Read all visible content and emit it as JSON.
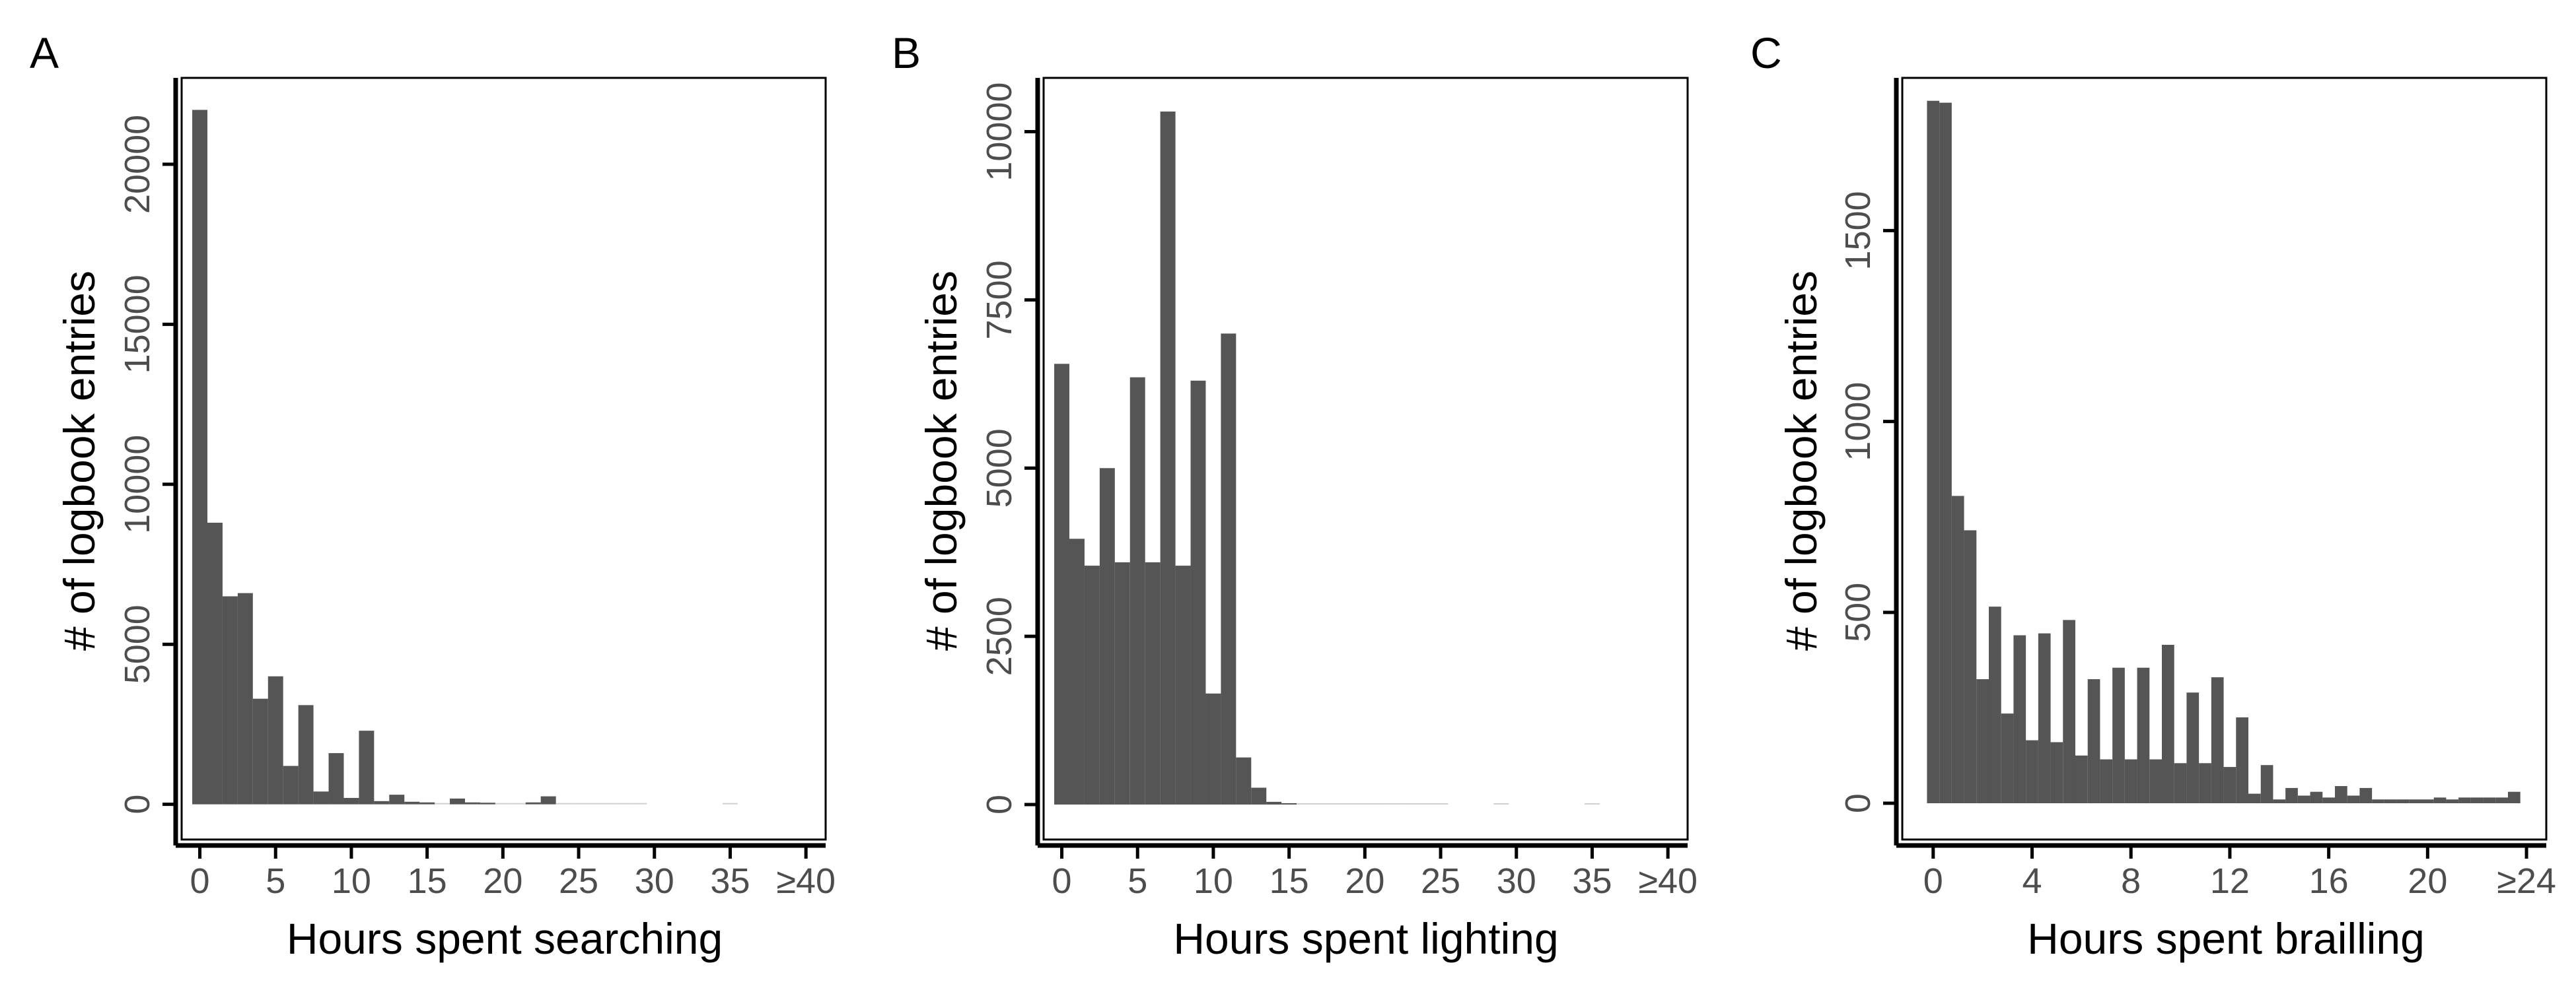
{
  "chart_data": [
    {
      "panel": "A",
      "type": "bar",
      "xlabel": "Hours spent searching",
      "ylabel": "# of logbook entries",
      "xlim": [
        -1.2,
        41.3
      ],
      "ylim": [
        -1100,
        22700
      ],
      "bin_width": 1,
      "x_ticks": [
        0,
        5,
        10,
        15,
        20,
        25,
        30,
        35,
        40
      ],
      "x_tick_labels": [
        "0",
        "5",
        "10",
        "15",
        "20",
        "25",
        "30",
        "35",
        "≥40"
      ],
      "y_ticks": [
        0,
        5000,
        10000,
        15000,
        20000
      ],
      "y_tick_labels": [
        "0",
        "5000",
        "10000",
        "15000",
        "20000"
      ],
      "x": [
        0,
        1,
        2,
        3,
        4,
        5,
        6,
        7,
        8,
        9,
        10,
        11,
        12,
        13,
        14,
        15,
        16,
        17,
        18,
        19,
        20,
        21,
        22,
        23,
        24,
        25,
        26,
        27,
        28,
        29,
        30,
        31,
        32,
        33,
        34,
        35,
        36,
        37,
        38,
        39,
        40
      ],
      "values": [
        21700,
        8800,
        6500,
        6600,
        3300,
        4000,
        1200,
        3100,
        400,
        1600,
        200,
        2300,
        100,
        300,
        80,
        60,
        20,
        180,
        60,
        50,
        20,
        10,
        60,
        250,
        10,
        5,
        10,
        10,
        5,
        10,
        0,
        0,
        0,
        0,
        0,
        5,
        0,
        0,
        0,
        0,
        0
      ]
    },
    {
      "panel": "B",
      "type": "bar",
      "xlabel": "Hours spent lighting",
      "ylabel": "# of logbook entries",
      "xlim": [
        -1.2,
        41.3
      ],
      "ylim": [
        -520,
        10800
      ],
      "bin_width": 1,
      "x_ticks": [
        0,
        5,
        10,
        15,
        20,
        25,
        30,
        35,
        40
      ],
      "x_tick_labels": [
        "0",
        "5",
        "10",
        "15",
        "20",
        "25",
        "30",
        "35",
        "≥40"
      ],
      "y_ticks": [
        0,
        2500,
        5000,
        7500,
        10000
      ],
      "y_tick_labels": [
        "0",
        "2500",
        "5000",
        "7500",
        "10000"
      ],
      "x": [
        0,
        1,
        2,
        3,
        4,
        5,
        6,
        7,
        8,
        9,
        10,
        11,
        12,
        13,
        14,
        15,
        16,
        17,
        18,
        19,
        20,
        21,
        22,
        23,
        24,
        25,
        26,
        27,
        28,
        29,
        30,
        31,
        32,
        33,
        34,
        35,
        36,
        37,
        38,
        39,
        40
      ],
      "values": [
        6550,
        3950,
        3550,
        5000,
        3600,
        6350,
        3600,
        10300,
        3550,
        6300,
        1650,
        7000,
        700,
        250,
        40,
        20,
        10,
        5,
        10,
        5,
        10,
        5,
        5,
        5,
        5,
        5,
        0,
        0,
        0,
        5,
        0,
        0,
        0,
        0,
        0,
        5,
        0,
        0,
        0,
        0,
        0
      ]
    },
    {
      "panel": "C",
      "type": "bar",
      "xlabel": "Hours spent brailling",
      "ylabel": "# of logbook entries",
      "xlim": [
        -1.25,
        24.8
      ],
      "ylim": [
        -95,
        1900
      ],
      "bin_width": 0.5,
      "x_ticks": [
        0,
        4,
        8,
        12,
        16,
        20,
        24
      ],
      "x_tick_labels": [
        "0",
        "4",
        "8",
        "12",
        "16",
        "20",
        "≥24"
      ],
      "y_ticks": [
        0,
        500,
        1000,
        1500
      ],
      "y_tick_labels": [
        "0",
        "500",
        "1000",
        "1500"
      ],
      "x": [
        0,
        0.5,
        1,
        1.5,
        2,
        2.5,
        3,
        3.5,
        4,
        4.5,
        5,
        5.5,
        6,
        6.5,
        7,
        7.5,
        8,
        8.5,
        9,
        9.5,
        10,
        10.5,
        11,
        11.5,
        12,
        12.5,
        13,
        13.5,
        14,
        14.5,
        15,
        15.5,
        16,
        16.5,
        17,
        17.5,
        18,
        18.5,
        19,
        19.5,
        20,
        20.5,
        21,
        21.5,
        22,
        22.5,
        23,
        23.5,
        24
      ],
      "values": [
        1840,
        1835,
        805,
        715,
        325,
        515,
        235,
        440,
        165,
        445,
        160,
        480,
        125,
        325,
        115,
        355,
        115,
        355,
        115,
        415,
        105,
        290,
        105,
        330,
        95,
        225,
        25,
        100,
        10,
        40,
        20,
        30,
        15,
        45,
        20,
        40,
        10,
        10,
        10,
        10,
        10,
        15,
        10,
        15,
        15,
        15,
        15,
        30,
        0
      ]
    }
  ]
}
